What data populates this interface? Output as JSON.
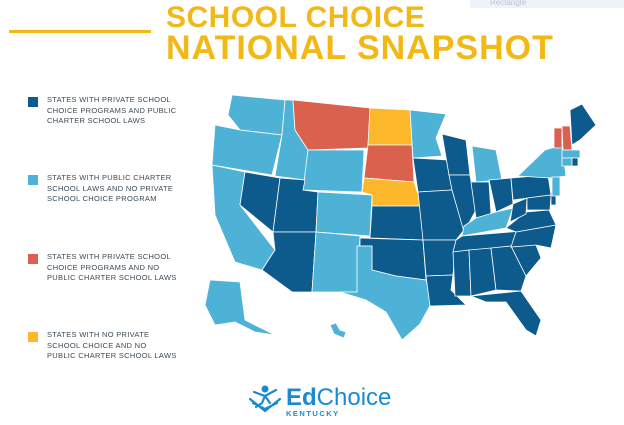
{
  "header": {
    "line1": "SCHOOL CHOICE",
    "line2": "NATIONAL SNAPSHOT",
    "chip": "Rectangle"
  },
  "colors": {
    "dark": "#0d5a8c",
    "light": "#4db2d6",
    "red": "#d9614e",
    "yellow": "#fdb72a",
    "title": "#f2b816"
  },
  "legend": [
    {
      "key": "dark",
      "label": "STATES WITH PRIVATE SCHOOL CHOICE PROGRAMS AND PUBLIC CHARTER SCHOOL LAWS"
    },
    {
      "key": "light",
      "label": "STATES WITH PUBLIC CHARTER SCHOOL LAWS AND NO PRIVATE SCHOOL CHOICE PROGRAM"
    },
    {
      "key": "red",
      "label": "STATES WITH PRIVATE SCHOOL CHOICE PROGRAMS AND NO PUBLIC CHARTER SCHOOL LAWS"
    },
    {
      "key": "yellow",
      "label": "STATES WITH NO PRIVATE SCHOOL CHOICE AND NO PUBLIC CHARTER SCHOOL LAWS"
    }
  ],
  "states": {
    "WA": "light",
    "OR": "light",
    "CA": "light",
    "NV": "dark",
    "ID": "light",
    "MT": "red",
    "WY": "light",
    "UT": "dark",
    "AZ": "dark",
    "CO": "light",
    "NM": "light",
    "ND": "yellow",
    "SD": "red",
    "NE": "yellow",
    "KS": "dark",
    "OK": "dark",
    "TX": "light",
    "MN": "light",
    "IA": "dark",
    "MO": "dark",
    "AR": "dark",
    "LA": "dark",
    "WI": "dark",
    "IL": "dark",
    "MI": "light",
    "IN": "dark",
    "OH": "dark",
    "KY": "light",
    "TN": "dark",
    "MS": "dark",
    "AL": "dark",
    "GA": "dark",
    "FL": "dark",
    "SC": "dark",
    "NC": "dark",
    "VA": "dark",
    "WV": "dark",
    "PA": "dark",
    "NY": "light",
    "MD": "dark",
    "DE": "dark",
    "NJ": "light",
    "VT": "red",
    "NH": "red",
    "ME": "dark",
    "MA": "light",
    "CT": "light",
    "RI": "dark",
    "AK": "light",
    "HI": "light"
  },
  "logo": {
    "bold": "Ed",
    "rest": "Choice",
    "sub": "KENTUCKY"
  }
}
